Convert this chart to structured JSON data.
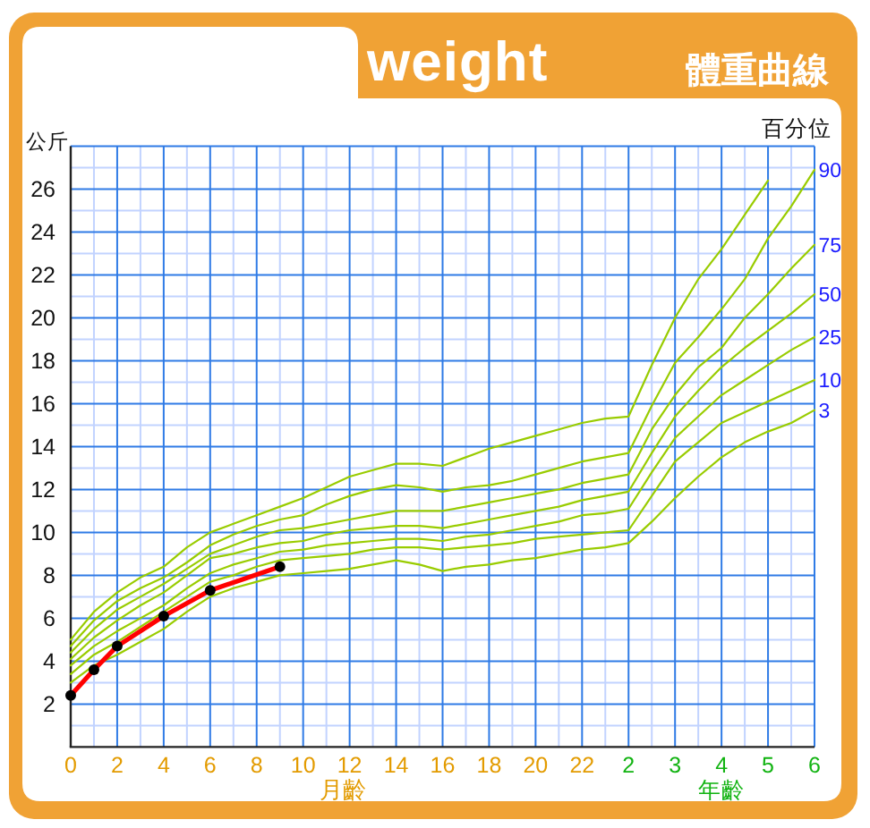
{
  "chart_data": {
    "type": "line",
    "title": "weight",
    "subtitle": "體重曲線",
    "xlabel": "月齡",
    "ylabel": "公斤",
    "annotations": [
      "年齡",
      "百分位"
    ],
    "categories": [
      "0",
      null,
      "2",
      null,
      "4",
      null,
      "6",
      null,
      "8",
      null,
      "10",
      null,
      "12",
      null,
      "14",
      null,
      "16",
      null,
      "18",
      null,
      "20",
      null,
      "22",
      null,
      "2",
      null,
      "3",
      null,
      "4",
      null,
      "5",
      null,
      "6"
    ],
    "ylim": [
      0,
      28
    ],
    "yticks": [
      2,
      4,
      6,
      8,
      10,
      12,
      14,
      16,
      18,
      20,
      22,
      24,
      26
    ],
    "grid": true,
    "line_style": "solid",
    "series": [
      {
        "color": "#99cc00",
        "values": [
          5.0,
          6.3,
          7.2,
          7.9,
          8.4,
          9.3,
          10.0,
          10.4,
          10.8,
          11.2,
          11.6,
          12.1,
          12.6,
          12.9,
          13.2,
          13.2,
          13.1,
          13.5,
          13.9,
          14.2,
          14.5,
          14.8,
          15.1,
          15.3,
          15.4,
          17.8,
          20.0,
          21.8,
          23.2,
          24.8,
          26.4,
          null,
          null
        ]
      },
      {
        "name": "90",
        "color": "#99cc00",
        "values": [
          4.7,
          5.9,
          6.8,
          7.4,
          7.9,
          8.6,
          9.4,
          9.9,
          10.3,
          10.6,
          10.8,
          11.3,
          11.7,
          12.0,
          12.2,
          12.1,
          11.9,
          12.1,
          12.2,
          12.4,
          12.7,
          13.0,
          13.3,
          13.5,
          13.7,
          15.9,
          17.9,
          19.1,
          20.4,
          21.8,
          23.7,
          25.2,
          26.9
        ]
      },
      {
        "name": "75",
        "color": "#99cc00",
        "values": [
          4.4,
          5.5,
          6.4,
          7.0,
          7.6,
          8.3,
          9.0,
          9.4,
          9.8,
          10.1,
          10.2,
          10.4,
          10.6,
          10.8,
          11.0,
          11.0,
          11.0,
          11.2,
          11.4,
          11.6,
          11.8,
          12.0,
          12.3,
          12.5,
          12.7,
          14.8,
          16.4,
          17.7,
          18.6,
          20.0,
          21.1,
          22.3,
          23.4
        ]
      },
      {
        "name": "50",
        "color": "#99cc00",
        "values": [
          4.1,
          5.1,
          5.9,
          6.6,
          7.2,
          8.0,
          8.8,
          9.0,
          9.3,
          9.5,
          9.6,
          9.9,
          10.1,
          10.2,
          10.3,
          10.3,
          10.2,
          10.4,
          10.6,
          10.8,
          11.0,
          11.2,
          11.5,
          11.7,
          11.9,
          13.7,
          15.4,
          16.6,
          17.7,
          18.6,
          19.4,
          20.2,
          21.1
        ]
      },
      {
        "name": "25",
        "color": "#99cc00",
        "values": [
          3.8,
          4.7,
          5.4,
          6.0,
          6.6,
          7.4,
          8.1,
          8.5,
          8.8,
          9.1,
          9.2,
          9.4,
          9.5,
          9.6,
          9.7,
          9.7,
          9.6,
          9.8,
          9.9,
          10.1,
          10.3,
          10.5,
          10.8,
          10.9,
          11.1,
          12.8,
          14.4,
          15.4,
          16.4,
          17.1,
          17.8,
          18.5,
          19.1
        ]
      },
      {
        "name": "10",
        "color": "#99cc00",
        "values": [
          3.4,
          4.3,
          4.9,
          5.6,
          6.3,
          7.0,
          7.7,
          8.0,
          8.4,
          8.7,
          8.8,
          8.9,
          9.0,
          9.2,
          9.3,
          9.3,
          9.2,
          9.3,
          9.4,
          9.5,
          9.7,
          9.8,
          9.9,
          10.0,
          10.1,
          11.7,
          13.3,
          14.2,
          15.1,
          15.6,
          16.1,
          16.6,
          17.1
        ]
      },
      {
        "name": "3",
        "color": "#99cc00",
        "values": [
          3.0,
          3.8,
          4.3,
          4.9,
          5.5,
          6.3,
          7.0,
          7.4,
          7.7,
          8.0,
          8.1,
          8.2,
          8.3,
          8.5,
          8.7,
          8.5,
          8.2,
          8.4,
          8.5,
          8.7,
          8.8,
          9.0,
          9.2,
          9.3,
          9.5,
          10.5,
          11.6,
          12.6,
          13.5,
          14.2,
          14.7,
          15.1,
          15.7
        ]
      },
      {
        "color": "#ff0000",
        "marker": "circle",
        "values": [
          2.4,
          3.6,
          4.7,
          null,
          6.1,
          null,
          7.3,
          null,
          null,
          8.4,
          null,
          null,
          null,
          null,
          null,
          null,
          null,
          null,
          null,
          null,
          null,
          null,
          null,
          null,
          null,
          null,
          null,
          null,
          null,
          null,
          null,
          null,
          null
        ]
      }
    ]
  }
}
